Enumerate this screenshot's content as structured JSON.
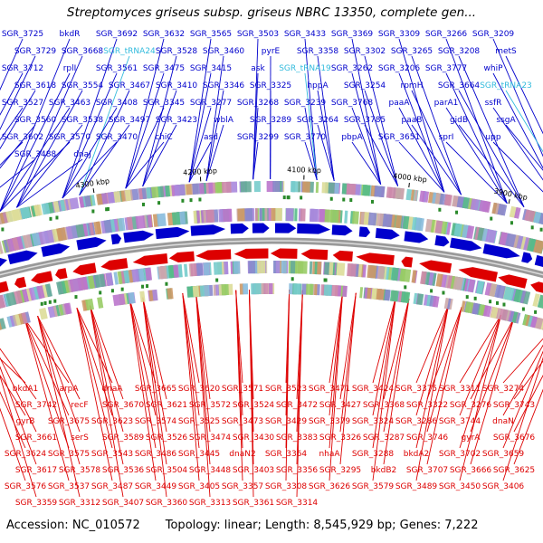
{
  "title": "Streptomyces griseus subsp. griseus NBRC 13350, complete gen...",
  "footer": {
    "accession": "Accession: NC_010572",
    "summary": "Topology: linear; Length: 8,545,929 bp; Genes: 7,222"
  },
  "colors": {
    "forward": "#0000cc",
    "reverse": "#dd0000",
    "trna": "#33bbdd",
    "axis": "#999999"
  },
  "ticks": [
    {
      "label": "4400 kbp"
    },
    {
      "label": "4300 kbp"
    },
    {
      "label": "4200 kbp"
    },
    {
      "label": "4100 kbp"
    },
    {
      "label": "4000 kbp"
    },
    {
      "label": "3900 kbp"
    },
    {
      "label": "3800 kbp"
    }
  ],
  "top_labels": [
    "SGR_3725",
    "bkdR",
    "SGR_3692",
    "SGR_3632",
    "SGR_3565",
    "SGR_3503",
    "SGR_3433",
    "SGR_3369",
    "SGR_3309",
    "SGR_3266",
    "SGR_3209",
    "SGR_3729",
    "SGR_3668",
    "SGR_tRNA24",
    "SGR_3528",
    "SGR_3460",
    "pyrE",
    "SGR_3358",
    "SGR_3302",
    "SGR_3265",
    "SGR_3208",
    "metS",
    "SGR_3712",
    "rplI",
    "SGR_3561",
    "SGR_3475",
    "SGR_3415",
    "ask",
    "SGR_tRNA19",
    "SGR_3262",
    "SGR_3206",
    "SGR_3777",
    "whiP",
    "SGR_3618",
    "SGR_3554",
    "SGR_3467",
    "SGR_3410",
    "SGR_3346",
    "SGR_3325",
    "hppA",
    "SGR_3254",
    "rpmH",
    "SGR_3664",
    "SGR_tRNA23",
    "SGR_3527",
    "SGR_3463",
    "SGR_3408",
    "SGR_3345",
    "SGR_3277",
    "SGR_3268",
    "SGR_3239",
    "SGR_3768",
    "paaA",
    "parA1",
    "ssfR",
    "SGR_3560",
    "SGR_3538",
    "SGR_3497",
    "SGR_3423",
    "wblA",
    "SGR_3289",
    "SGR_3264",
    "SGR_3785",
    "paaB",
    "gidB",
    "ssgA",
    "SGR_3602",
    "SGR_3570",
    "SGR_3470",
    "chiC",
    "asd",
    "SGR_3299",
    "SGR_3770",
    "pbpA",
    "SGR_3651",
    "sprI",
    "upp",
    "SGR_3488",
    "dnaJ"
  ],
  "bottom_labels": [
    "bkdA1",
    "arpA",
    "dnaA",
    "SGR_3665",
    "SGR_3620",
    "SGR_3571",
    "SGR_3523",
    "SGR_3471",
    "SGR_3424",
    "SGR_3375",
    "SGR_3311",
    "SGR_3274",
    "SGR_3742",
    "recF",
    "SGR_3670",
    "SGR_3621",
    "SGR_3572",
    "SGR_3524",
    "SGR_3472",
    "SGR_3427",
    "SGR_3368",
    "SGR_3322",
    "SGR_3276",
    "SGR_3743",
    "gyrB",
    "SGR_3675",
    "SGR_3623",
    "SGR_3574",
    "SGR_3525",
    "SGR_3473",
    "SGR_3429",
    "SGR_3379",
    "SGR_3324",
    "SGR_3286",
    "SGR_3744",
    "dnaN",
    "SGR_3661",
    "serS",
    "SGR_3589",
    "SGR_3526",
    "SGR_3474",
    "SGR_3430",
    "SGR_3383",
    "SGR_3326",
    "SGR_3287",
    "SGR_3746",
    "gyrA",
    "SGR_3676",
    "SGR_3624",
    "SGR_3575",
    "SGR_3543",
    "SGR_3486",
    "SGR_3445",
    "dnaN2",
    "SGR_3364",
    "nhaA",
    "SGR_3288",
    "bkdA2",
    "SGR_3702",
    "SGR_3659",
    "SGR_3617",
    "SGR_3578",
    "SGR_3536",
    "SGR_3504",
    "SGR_3448",
    "SGR_3403",
    "SGR_3356",
    "SGR_3295",
    "bkdB2",
    "SGR_3707",
    "SGR_3666",
    "SGR_3625",
    "SGR_3576",
    "SGR_3537",
    "SGR_3487",
    "SGR_3449",
    "SGR_3405",
    "SGR_3357",
    "SGR_3308",
    "SGR_3626",
    "SGR_3579",
    "SGR_3489",
    "SGR_3450",
    "SGR_3406",
    "SGR_3359",
    "SGR_3312",
    "SGR_3407",
    "SGR_3360",
    "SGR_3313",
    "SGR_3361",
    "SGR_3314"
  ]
}
